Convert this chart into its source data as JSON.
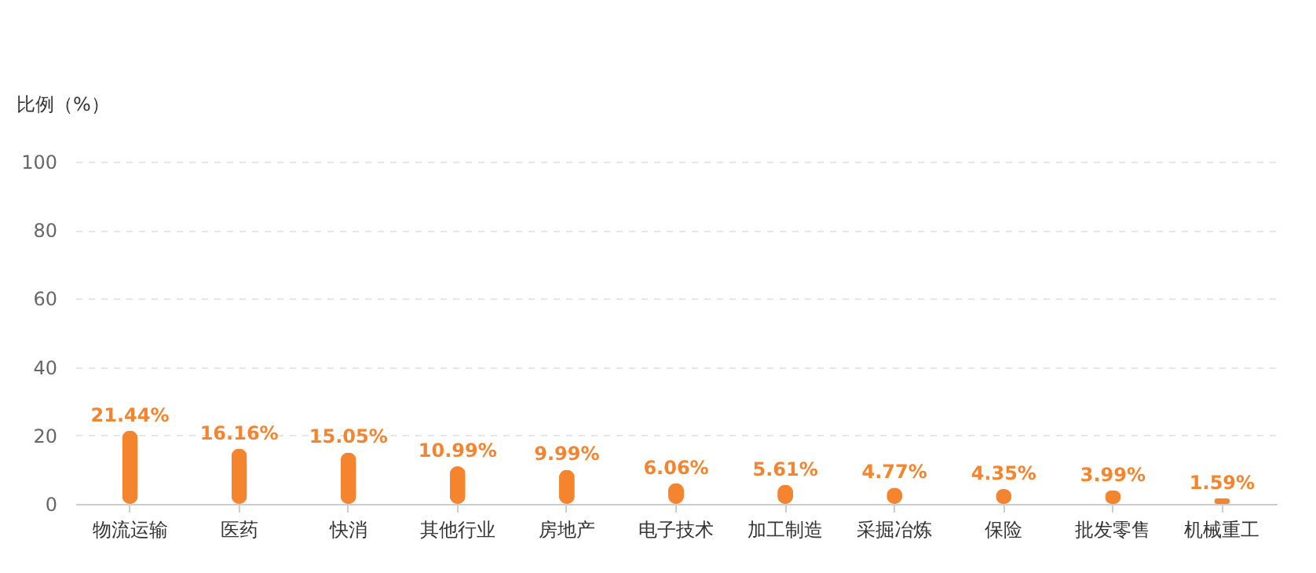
{
  "chart_data": {
    "type": "bar",
    "ylabel": "比例（%）",
    "categories": [
      "物流运输",
      "医药",
      "快消",
      "其他行业",
      "房地产",
      "电子技术",
      "加工制造",
      "采掘冶炼",
      "保险",
      "批发零售",
      "机械重工"
    ],
    "values": [
      21.44,
      16.16,
      15.05,
      10.99,
      9.99,
      6.06,
      5.61,
      4.77,
      4.35,
      3.99,
      1.59
    ],
    "value_labels": [
      "21.44%",
      "16.16%",
      "15.05%",
      "10.99%",
      "9.99%",
      "6.06%",
      "5.61%",
      "4.77%",
      "4.35%",
      "3.99%",
      "1.59%"
    ],
    "color": "#f5842e",
    "ylim": [
      0,
      100
    ],
    "yticks": [
      0,
      20,
      40,
      60,
      80,
      100
    ],
    "grid": "y"
  }
}
